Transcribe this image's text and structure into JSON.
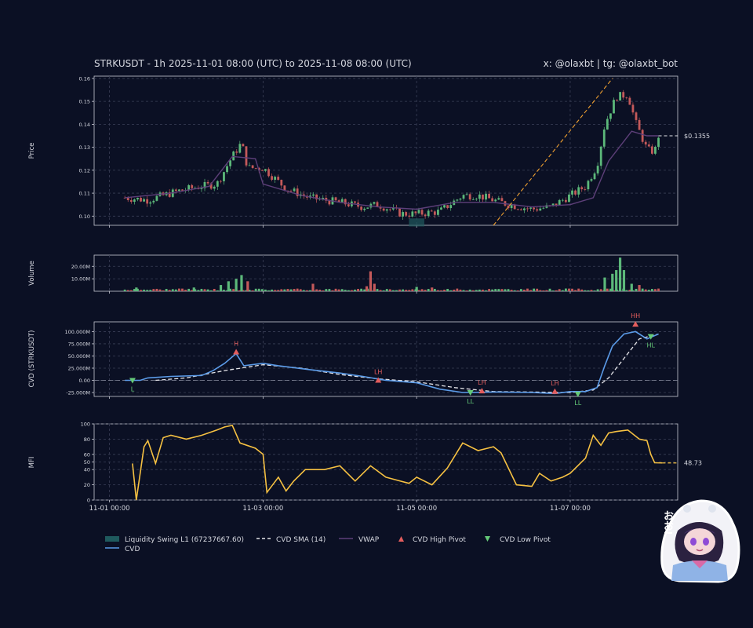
{
  "header": {
    "title": "STRKUSDT - 1h 2025-11-01 08:00 (UTC) to 2025-11-08 08:00 (UTC)",
    "credits": "x: @olaxbt | tg: @olaxbt_bot"
  },
  "colors": {
    "background": "#0b1024",
    "up": "#5cb87a",
    "down": "#c4595a",
    "vwap": "#5d3f79",
    "cvd": "#5b9be8",
    "cvd_sma": "#e6e6ea",
    "mfi": "#f6c142",
    "trendline": "#f0a030",
    "liquidity": "#1f5a5e",
    "high_pivot": "#e35d5d",
    "low_pivot": "#65c978"
  },
  "chart_data": [
    {
      "type": "candlestick",
      "panel": "price",
      "ylabel": "Price",
      "ylim": [
        0.096,
        0.161
      ],
      "yticks": [
        0.1,
        0.11,
        0.12,
        0.13,
        0.14,
        0.15,
        0.16
      ],
      "ytick_labels": [
        "0.10",
        "0.11",
        "0.12",
        "0.13",
        "0.14",
        "0.15",
        "0.16"
      ],
      "last_price_label": "$0.1355",
      "close_path": [
        [
          0.2,
          0.108
        ],
        [
          0.5,
          0.107
        ],
        [
          0.9,
          0.111
        ],
        [
          1.2,
          0.113
        ],
        [
          1.4,
          0.114
        ],
        [
          1.6,
          0.126
        ],
        [
          1.72,
          0.132
        ],
        [
          1.8,
          0.121
        ],
        [
          2.0,
          0.121
        ],
        [
          2.3,
          0.112
        ],
        [
          2.6,
          0.108
        ],
        [
          3.0,
          0.106
        ],
        [
          3.3,
          0.104
        ],
        [
          3.5,
          0.105
        ],
        [
          3.8,
          0.101
        ],
        [
          4.0,
          0.101
        ],
        [
          4.3,
          0.102
        ],
        [
          4.6,
          0.109
        ],
        [
          4.8,
          0.109
        ],
        [
          5.0,
          0.107
        ],
        [
          5.2,
          0.105
        ],
        [
          5.5,
          0.103
        ],
        [
          5.75,
          0.104
        ],
        [
          6.0,
          0.109
        ],
        [
          6.2,
          0.113
        ],
        [
          6.35,
          0.122
        ],
        [
          6.45,
          0.14
        ],
        [
          6.6,
          0.152
        ],
        [
          6.75,
          0.153
        ],
        [
          6.85,
          0.141
        ],
        [
          7.0,
          0.129
        ],
        [
          7.1,
          0.128
        ],
        [
          7.15,
          0.135
        ]
      ],
      "vwap_path": [
        [
          0.2,
          0.108
        ],
        [
          0.8,
          0.11
        ],
        [
          1.3,
          0.113
        ],
        [
          1.6,
          0.126
        ],
        [
          1.9,
          0.125
        ],
        [
          2.0,
          0.114
        ],
        [
          2.5,
          0.109
        ],
        [
          3.0,
          0.106
        ],
        [
          3.5,
          0.104
        ],
        [
          4.0,
          0.103
        ],
        [
          4.5,
          0.106
        ],
        [
          5.0,
          0.106
        ],
        [
          5.5,
          0.104
        ],
        [
          6.0,
          0.105
        ],
        [
          6.3,
          0.108
        ],
        [
          6.5,
          0.124
        ],
        [
          6.8,
          0.137
        ],
        [
          7.0,
          0.135
        ],
        [
          7.15,
          0.135
        ]
      ],
      "trendline": [
        [
          5.0,
          0.096
        ],
        [
          6.55,
          0.16
        ]
      ],
      "liquidity_zone": {
        "x": [
          3.9,
          4.1
        ],
        "y": [
          0.0955,
          0.099
        ]
      }
    },
    {
      "type": "bar",
      "panel": "volume",
      "ylabel": "Volume",
      "ylim": [
        0,
        29000000
      ],
      "yticks": [
        10000000,
        20000000
      ],
      "ytick_labels": [
        "10.00M",
        "20.00M"
      ],
      "spikes": [
        [
          0.35,
          3000000,
          "up"
        ],
        [
          1.1,
          3000000,
          "up"
        ],
        [
          1.45,
          5000000,
          "up"
        ],
        [
          1.55,
          8000000,
          "up"
        ],
        [
          1.65,
          10000000,
          "up"
        ],
        [
          1.72,
          13000000,
          "up"
        ],
        [
          1.8,
          8000000,
          "down"
        ],
        [
          2.65,
          6000000,
          "down"
        ],
        [
          3.35,
          4000000,
          "down"
        ],
        [
          3.4,
          16000000,
          "down"
        ],
        [
          3.45,
          6000000,
          "down"
        ],
        [
          4.0,
          3500000,
          "up"
        ],
        [
          4.2,
          3000000,
          "down"
        ],
        [
          6.45,
          11000000,
          "up"
        ],
        [
          6.55,
          14000000,
          "up"
        ],
        [
          6.6,
          17000000,
          "up"
        ],
        [
          6.65,
          27000000,
          "up"
        ],
        [
          6.7,
          17000000,
          "up"
        ],
        [
          6.8,
          6000000,
          "up"
        ],
        [
          6.9,
          5000000,
          "down"
        ]
      ]
    },
    {
      "type": "line",
      "panel": "cvd",
      "ylabel": "CVD (STRKUSDT)",
      "ylim": [
        -33000000,
        120000000
      ],
      "yticks": [
        -25000000,
        0,
        25000000,
        50000000,
        75000000,
        100000000
      ],
      "ytick_labels": [
        "-25.000M",
        "0.00",
        "25.000M",
        "50.000M",
        "75.000M",
        "100.000M"
      ],
      "cvd_path": [
        [
          0.2,
          0
        ],
        [
          0.4,
          0
        ],
        [
          0.5,
          5000000
        ],
        [
          0.8,
          8000000
        ],
        [
          1.2,
          10000000
        ],
        [
          1.35,
          20000000
        ],
        [
          1.5,
          35000000
        ],
        [
          1.65,
          55000000
        ],
        [
          1.75,
          30000000
        ],
        [
          2.0,
          35000000
        ],
        [
          2.2,
          30000000
        ],
        [
          2.6,
          22000000
        ],
        [
          3.0,
          15000000
        ],
        [
          3.3,
          8000000
        ],
        [
          3.6,
          0
        ],
        [
          4.0,
          -5000000
        ],
        [
          4.3,
          -18000000
        ],
        [
          4.6,
          -25000000
        ],
        [
          5.0,
          -24000000
        ],
        [
          5.5,
          -25000000
        ],
        [
          5.8,
          -27000000
        ],
        [
          6.0,
          -23000000
        ],
        [
          6.2,
          -23000000
        ],
        [
          6.35,
          -15000000
        ],
        [
          6.45,
          30000000
        ],
        [
          6.55,
          70000000
        ],
        [
          6.7,
          95000000
        ],
        [
          6.85,
          100000000
        ],
        [
          7.0,
          85000000
        ],
        [
          7.15,
          95000000
        ]
      ],
      "cvd_sma_path": [
        [
          0.6,
          0
        ],
        [
          1.0,
          5000000
        ],
        [
          1.5,
          20000000
        ],
        [
          2.0,
          32000000
        ],
        [
          2.5,
          25000000
        ],
        [
          3.0,
          12000000
        ],
        [
          3.5,
          3000000
        ],
        [
          4.0,
          -3000000
        ],
        [
          4.5,
          -15000000
        ],
        [
          5.0,
          -23000000
        ],
        [
          5.5,
          -24000000
        ],
        [
          6.0,
          -25000000
        ],
        [
          6.3,
          -20000000
        ],
        [
          6.5,
          5000000
        ],
        [
          6.7,
          45000000
        ],
        [
          6.9,
          85000000
        ],
        [
          7.15,
          95000000
        ]
      ],
      "pivots": [
        {
          "x": 0.3,
          "y": 0,
          "kind": "low",
          "label": "L"
        },
        {
          "x": 1.65,
          "y": 58000000,
          "kind": "high",
          "label": "H"
        },
        {
          "x": 3.5,
          "y": 0,
          "kind": "high",
          "label": "LH"
        },
        {
          "x": 4.7,
          "y": -25000000,
          "kind": "low",
          "label": "LL"
        },
        {
          "x": 4.85,
          "y": -22000000,
          "kind": "high",
          "label": "LH"
        },
        {
          "x": 5.8,
          "y": -23000000,
          "kind": "high",
          "label": "LH"
        },
        {
          "x": 6.1,
          "y": -28000000,
          "kind": "low",
          "label": "LL"
        },
        {
          "x": 6.85,
          "y": 115000000,
          "kind": "high",
          "label": "HH"
        },
        {
          "x": 7.05,
          "y": 90000000,
          "kind": "low",
          "label": "HL"
        }
      ]
    },
    {
      "type": "line",
      "panel": "mfi",
      "ylabel": "MFI",
      "ylim": [
        0,
        100
      ],
      "yticks": [
        0,
        20,
        40,
        50,
        60,
        80,
        100
      ],
      "ytick_labels": [
        "0",
        "20",
        "40",
        "50",
        "60",
        "80",
        "100"
      ],
      "last_value_label": "48.73",
      "mfi_path": [
        [
          0.3,
          48
        ],
        [
          0.35,
          0
        ],
        [
          0.45,
          70
        ],
        [
          0.5,
          78
        ],
        [
          0.6,
          48
        ],
        [
          0.7,
          82
        ],
        [
          0.8,
          85
        ],
        [
          1.0,
          80
        ],
        [
          1.2,
          85
        ],
        [
          1.4,
          92
        ],
        [
          1.5,
          96
        ],
        [
          1.6,
          98
        ],
        [
          1.7,
          75
        ],
        [
          1.9,
          68
        ],
        [
          2.0,
          60
        ],
        [
          2.05,
          10
        ],
        [
          2.2,
          30
        ],
        [
          2.3,
          12
        ],
        [
          2.4,
          25
        ],
        [
          2.55,
          40
        ],
        [
          2.8,
          40
        ],
        [
          3.0,
          45
        ],
        [
          3.2,
          25
        ],
        [
          3.4,
          45
        ],
        [
          3.6,
          30
        ],
        [
          3.9,
          22
        ],
        [
          4.0,
          30
        ],
        [
          4.2,
          20
        ],
        [
          4.4,
          42
        ],
        [
          4.6,
          75
        ],
        [
          4.8,
          65
        ],
        [
          5.0,
          70
        ],
        [
          5.1,
          62
        ],
        [
          5.3,
          20
        ],
        [
          5.5,
          18
        ],
        [
          5.6,
          35
        ],
        [
          5.75,
          25
        ],
        [
          5.9,
          30
        ],
        [
          6.0,
          35
        ],
        [
          6.2,
          55
        ],
        [
          6.3,
          85
        ],
        [
          6.4,
          72
        ],
        [
          6.5,
          88
        ],
        [
          6.6,
          90
        ],
        [
          6.75,
          92
        ],
        [
          6.9,
          80
        ],
        [
          7.0,
          78
        ],
        [
          7.05,
          60
        ],
        [
          7.1,
          49
        ],
        [
          7.2,
          48.73
        ]
      ]
    }
  ],
  "x_axis": {
    "ticks": [
      0,
      2,
      4,
      6
    ],
    "labels": [
      "11-01 00:00",
      "11-03 00:00",
      "11-05 00:00",
      "11-07 00:00"
    ],
    "range": [
      -0.2,
      7.4
    ]
  },
  "legend": {
    "items": [
      {
        "label": "Liquidity Swing L1 (67237667.60)",
        "icon": "liquidity-swatch"
      },
      {
        "label": "CVD SMA (14)",
        "icon": "dashed-line"
      },
      {
        "label": "VWAP",
        "icon": "vwap-line"
      },
      {
        "label": "CVD High Pivot",
        "icon": "up-triangle"
      },
      {
        "label": "CVD Low Pivot",
        "icon": "down-triangle"
      },
      {
        "label": "CVD",
        "icon": "cvd-line"
      }
    ]
  },
  "mascot": {
    "speech": "おお!"
  }
}
